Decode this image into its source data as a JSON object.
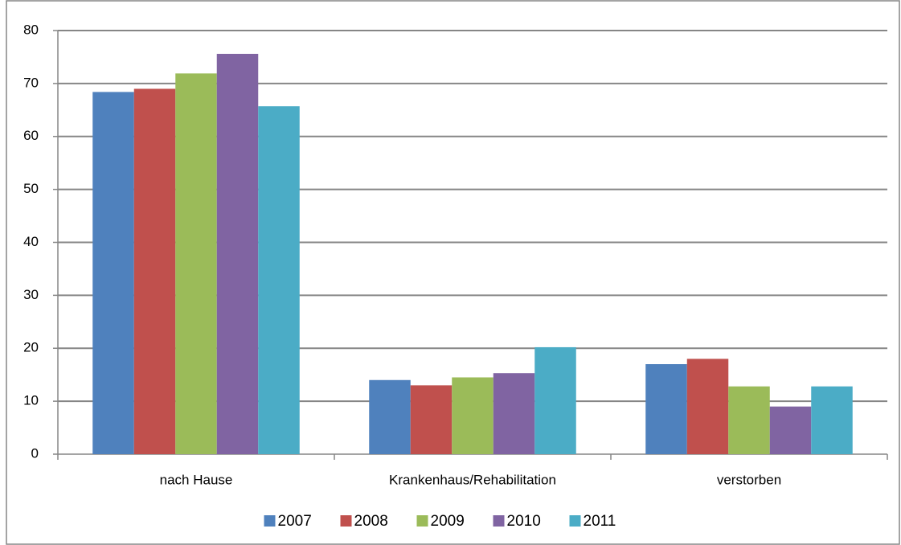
{
  "chart_data": {
    "type": "bar",
    "categories": [
      "nach Hause",
      "Krankenhaus/Rehabilitation",
      "verstorben"
    ],
    "series": [
      {
        "name": "2007",
        "color": "#4f81bd",
        "values": [
          68.4,
          14,
          17
        ]
      },
      {
        "name": "2008",
        "color": "#c0504d",
        "values": [
          69,
          13,
          18
        ]
      },
      {
        "name": "2009",
        "color": "#9bbb59",
        "values": [
          71.9,
          14.5,
          12.8
        ]
      },
      {
        "name": "2010",
        "color": "#8064a2",
        "values": [
          75.6,
          15.3,
          9
        ]
      },
      {
        "name": "2011",
        "color": "#4bacc6",
        "values": [
          65.7,
          20.2,
          12.8
        ]
      }
    ],
    "ylim": [
      0,
      80
    ],
    "yticks": [
      0,
      10,
      20,
      30,
      40,
      50,
      60,
      70,
      80
    ],
    "grid": true,
    "legend": "bottom"
  }
}
